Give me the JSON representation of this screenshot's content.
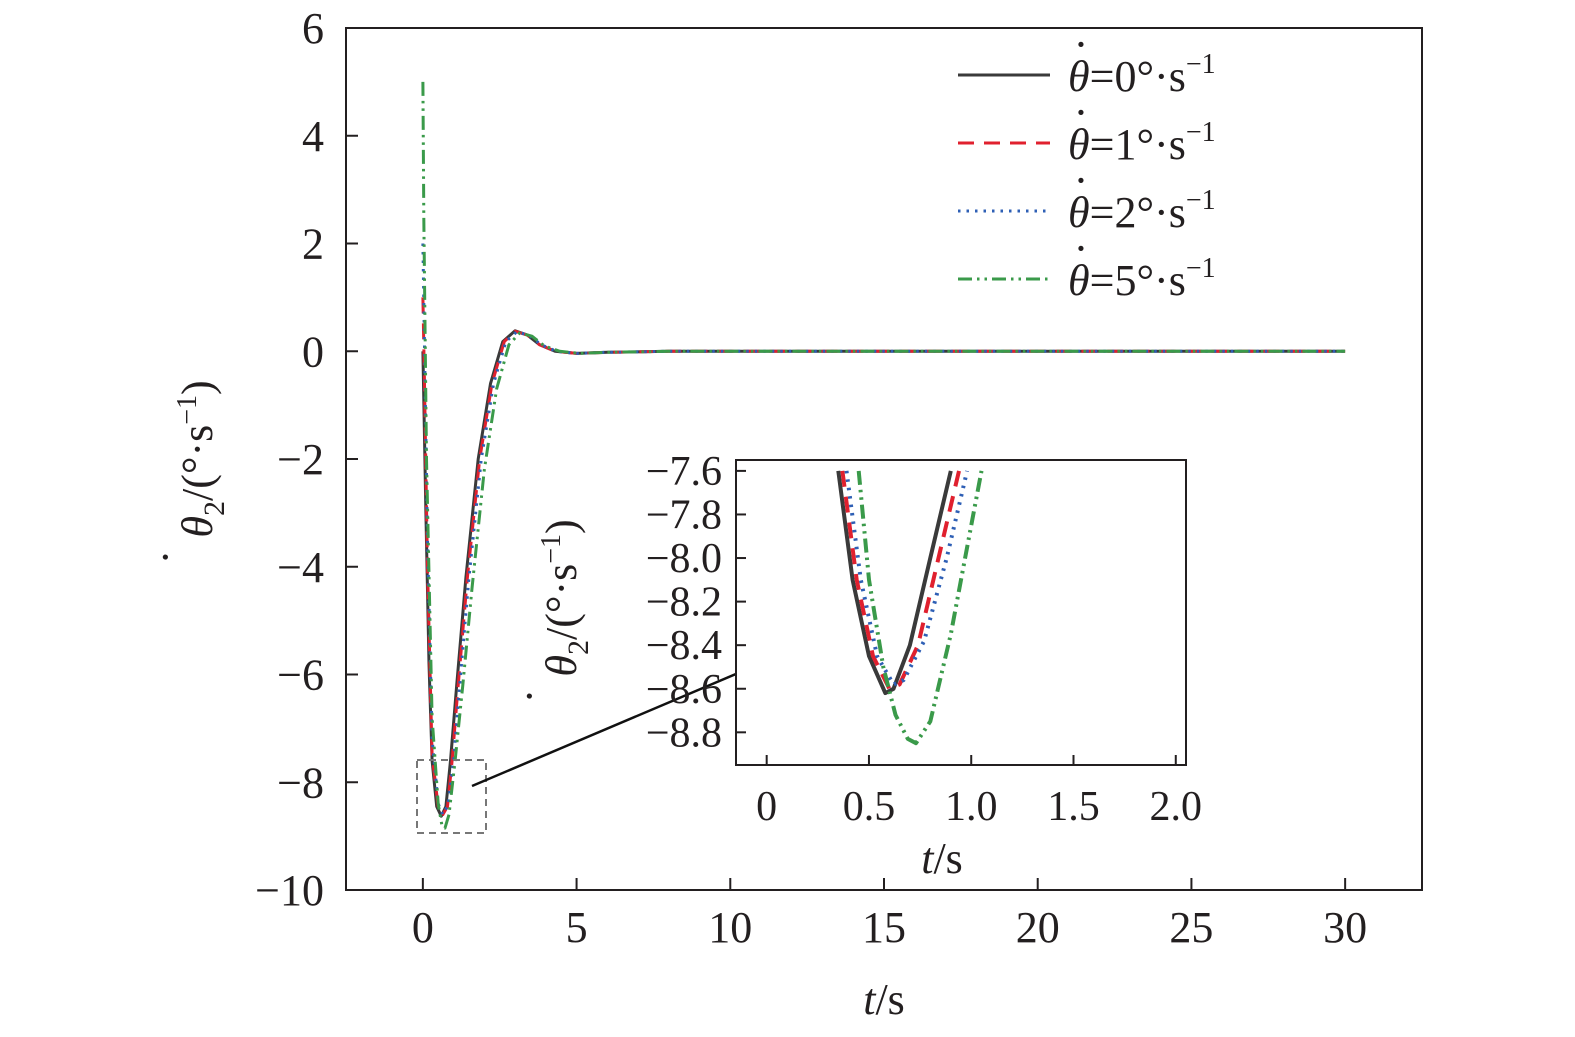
{
  "chart_data": [
    {
      "type": "line",
      "panel": "main",
      "title": "",
      "xlabel": "t/s",
      "ylabel": "θ̇2/(°·s−1)",
      "xlim": [
        -2.5,
        32.5
      ],
      "ylim": [
        -10,
        6
      ],
      "xticks": [
        0,
        5,
        10,
        15,
        20,
        25,
        30
      ],
      "yticks": [
        -10,
        -8,
        -6,
        -4,
        -2,
        0,
        2,
        4,
        6
      ],
      "xtick_labels": [
        "0",
        "5",
        "10",
        "15",
        "20",
        "25",
        "30"
      ],
      "ytick_labels": [
        "−10",
        "−8",
        "−6",
        "−4",
        "−2",
        "0",
        "2",
        "4",
        "6"
      ],
      "grid": false,
      "legend_position": "top-right",
      "series": [
        {
          "name": "θ̇=0°·s−1",
          "style": "solid",
          "color": "#3a3a3a",
          "x": [
            0,
            0.1,
            0.2,
            0.3,
            0.45,
            0.6,
            0.75,
            0.9,
            1.1,
            1.4,
            1.8,
            2.2,
            2.6,
            3.0,
            3.4,
            3.8,
            4.3,
            5.0,
            6.0,
            8.0,
            12.0,
            20.0,
            30.0
          ],
          "y": [
            0,
            -3.0,
            -5.8,
            -7.6,
            -8.45,
            -8.63,
            -8.45,
            -7.6,
            -6.2,
            -4.2,
            -2.0,
            -0.6,
            0.18,
            0.38,
            0.3,
            0.12,
            0.0,
            -0.04,
            -0.02,
            0,
            0,
            0,
            0
          ]
        },
        {
          "name": "θ̇=1°·s−1",
          "style": "dashed",
          "color": "#e0202e",
          "x": [
            0,
            0.05,
            0.15,
            0.3,
            0.5,
            0.63,
            0.8,
            0.95,
            1.15,
            1.45,
            1.85,
            2.25,
            2.65,
            3.0,
            3.4,
            3.8,
            4.3,
            5.0,
            6.0,
            8.0,
            12.0,
            20.0,
            30.0
          ],
          "y": [
            1.0,
            -0.5,
            -4.0,
            -7.5,
            -8.45,
            -8.62,
            -8.45,
            -7.6,
            -6.2,
            -4.2,
            -2.0,
            -0.6,
            0.18,
            0.37,
            0.3,
            0.12,
            0.0,
            -0.04,
            -0.02,
            0,
            0,
            0,
            0
          ]
        },
        {
          "name": "θ̇=2°·s−1",
          "style": "dotted",
          "color": "#2e5fb5",
          "x": [
            0,
            0.05,
            0.15,
            0.3,
            0.5,
            0.65,
            0.82,
            1.0,
            1.2,
            1.5,
            1.9,
            2.3,
            2.7,
            3.05,
            3.45,
            3.85,
            4.35,
            5.0,
            6.0,
            8.0,
            12.0,
            20.0,
            30.0
          ],
          "y": [
            2.0,
            0.2,
            -3.5,
            -7.2,
            -8.4,
            -8.6,
            -8.42,
            -7.6,
            -6.2,
            -4.2,
            -2.0,
            -0.6,
            0.18,
            0.36,
            0.3,
            0.12,
            0.0,
            -0.04,
            -0.02,
            0,
            0,
            0,
            0
          ]
        },
        {
          "name": "θ̇=5°·s−1",
          "style": "dash-dot-dot",
          "color": "#3a9a4a",
          "x": [
            0,
            0.03,
            0.12,
            0.3,
            0.5,
            0.62,
            0.72,
            0.85,
            1.05,
            1.3,
            1.6,
            2.0,
            2.4,
            2.8,
            3.15,
            3.55,
            3.95,
            4.45,
            5.1,
            6.0,
            8.0,
            12.0,
            20.0,
            30.0
          ],
          "y": [
            5.0,
            2.5,
            -2.0,
            -6.8,
            -8.4,
            -8.8,
            -8.85,
            -8.6,
            -7.6,
            -6.2,
            -4.4,
            -2.2,
            -0.7,
            0.12,
            0.34,
            0.28,
            0.1,
            0.0,
            -0.04,
            -0.02,
            0,
            0,
            0,
            0
          ]
        }
      ]
    },
    {
      "type": "line",
      "panel": "inset",
      "title": "",
      "xlabel": "t/s",
      "ylabel": "θ̇2/(°·s−1)",
      "xlim": [
        -0.15,
        2.05
      ],
      "ylim": [
        -8.95,
        -7.55
      ],
      "xticks": [
        0,
        0.5,
        1.0,
        1.5,
        2.0
      ],
      "yticks": [
        -7.6,
        -7.8,
        -8.0,
        -8.2,
        -8.4,
        -8.6,
        -8.8
      ],
      "xtick_labels": [
        "0",
        "0.5",
        "1.0",
        "1.5",
        "2.0"
      ],
      "ytick_labels": [
        "−7.6",
        "−7.8",
        "−8.0",
        "−8.2",
        "−8.4",
        "−8.6",
        "−8.8"
      ],
      "grid": false,
      "series": [
        {
          "name": "θ̇=0°·s−1",
          "style": "solid",
          "color": "#3a3a3a",
          "x": [
            0.35,
            0.42,
            0.5,
            0.58,
            0.62,
            0.7,
            0.8,
            0.9
          ],
          "y": [
            -7.6,
            -8.1,
            -8.45,
            -8.62,
            -8.6,
            -8.4,
            -8.0,
            -7.6
          ]
        },
        {
          "name": "θ̇=1°·s−1",
          "style": "dashed",
          "color": "#e0202e",
          "x": [
            0.37,
            0.44,
            0.52,
            0.6,
            0.65,
            0.74,
            0.84,
            0.94
          ],
          "y": [
            -7.6,
            -8.1,
            -8.45,
            -8.6,
            -8.58,
            -8.4,
            -8.0,
            -7.6
          ]
        },
        {
          "name": "θ̇=2°·s−1",
          "style": "dotted",
          "color": "#2e5fb5",
          "x": [
            0.39,
            0.46,
            0.54,
            0.62,
            0.67,
            0.77,
            0.88,
            0.98
          ],
          "y": [
            -7.6,
            -8.1,
            -8.45,
            -8.58,
            -8.56,
            -8.38,
            -8.0,
            -7.6
          ]
        },
        {
          "name": "θ̇=5°·s−1",
          "style": "dash-dot-dot",
          "color": "#3a9a4a",
          "x": [
            0.45,
            0.5,
            0.57,
            0.63,
            0.69,
            0.73,
            0.8,
            0.9,
            0.97,
            1.05
          ],
          "y": [
            -7.6,
            -8.1,
            -8.5,
            -8.72,
            -8.83,
            -8.85,
            -8.75,
            -8.35,
            -8.0,
            -7.6
          ]
        }
      ]
    }
  ]
}
